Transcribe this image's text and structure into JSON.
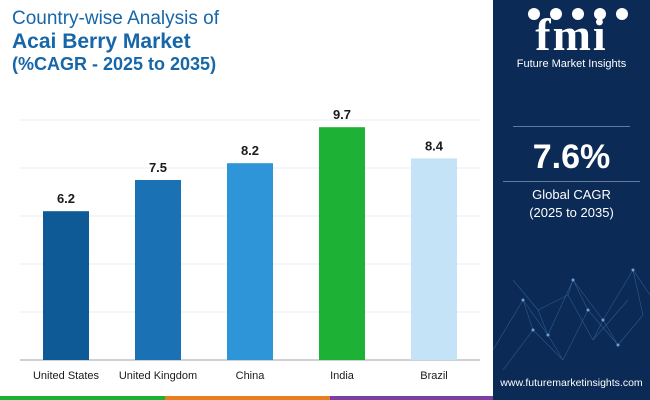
{
  "header": {
    "line1": "Country-wise Analysis of",
    "line2": "Acai Berry Market",
    "line3": "(%CAGR - 2025 to 2035)"
  },
  "chart_data": {
    "type": "bar",
    "categories": [
      "United States",
      "United Kingdom",
      "China",
      "India",
      "Brazil"
    ],
    "values": [
      6.2,
      7.5,
      8.2,
      9.7,
      8.4
    ],
    "value_labels": [
      "6.2",
      "7.5",
      "8.2",
      "9.7",
      "8.4"
    ],
    "colors": [
      "#0d5a97",
      "#1a72b5",
      "#2e95d8",
      "#1db236",
      "#c4e3f6"
    ],
    "ylim": [
      0,
      10
    ],
    "grid": true,
    "title": "",
    "xlabel": "",
    "ylabel": ""
  },
  "panel": {
    "logo_text": "fmi",
    "logo_subtitle": "Future Market Insights",
    "cagr_value": "7.6%",
    "cagr_label": "Global CAGR",
    "cagr_period": "(2025 to 2035)",
    "url": "www.futuremarketinsights.com"
  },
  "colors": {
    "title": "#1666a8",
    "panel_bg": "#0b2a55",
    "bottom_bar": [
      "#1db236",
      "#e67e22",
      "#7b3fa0",
      "#1666a8"
    ]
  }
}
